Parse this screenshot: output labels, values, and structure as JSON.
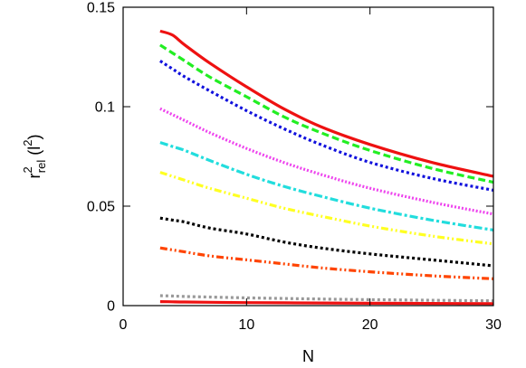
{
  "chart_data": {
    "type": "line",
    "title": "",
    "xlabel": "N",
    "ylabel": {
      "base": "r",
      "sup": "2",
      "sub": "rel",
      "unit_open": " (l",
      "unit_sup": "2",
      "unit_close": ")"
    },
    "xlim": [
      0,
      30
    ],
    "ylim": [
      0,
      0.15
    ],
    "x_ticks": [
      0,
      10,
      20,
      30
    ],
    "x_tick_labels": [
      "0",
      "10",
      "20",
      "30"
    ],
    "y_ticks": [
      0,
      0.05,
      0.1,
      0.15
    ],
    "y_tick_labels": [
      "0",
      "0.05",
      "0.1",
      "0.15"
    ],
    "grid": false,
    "legend": "none",
    "x": [
      3,
      4,
      5,
      7,
      10,
      13,
      16,
      20,
      25,
      30
    ],
    "series": [
      {
        "color": "#ee1111",
        "dash": "solid",
        "values": [
          0.138,
          0.136,
          0.131,
          0.122,
          0.11,
          0.099,
          0.09,
          0.081,
          0.072,
          0.065
        ]
      },
      {
        "color": "#22ee22",
        "dash": "dashed",
        "values": [
          0.131,
          0.127,
          0.123,
          0.115,
          0.105,
          0.095,
          0.087,
          0.078,
          0.069,
          0.062
        ]
      },
      {
        "color": "#1111dd",
        "dash": "dotted",
        "values": [
          0.123,
          0.119,
          0.115,
          0.108,
          0.098,
          0.089,
          0.081,
          0.072,
          0.064,
          0.058
        ]
      },
      {
        "color": "#ee44ee",
        "dash": "densedot",
        "values": [
          0.099,
          0.096,
          0.093,
          0.087,
          0.079,
          0.072,
          0.066,
          0.059,
          0.052,
          0.046
        ]
      },
      {
        "color": "#22dddd",
        "dash": "dashdot",
        "values": [
          0.082,
          0.08,
          0.078,
          0.073,
          0.066,
          0.06,
          0.055,
          0.049,
          0.043,
          0.038
        ]
      },
      {
        "color": "#ffff22",
        "dash": "dashdotdot",
        "values": [
          0.067,
          0.065,
          0.063,
          0.059,
          0.054,
          0.049,
          0.045,
          0.04,
          0.035,
          0.031
        ]
      },
      {
        "color": "#000000",
        "dash": "dotted",
        "values": [
          0.044,
          0.043,
          0.042,
          0.039,
          0.036,
          0.032,
          0.029,
          0.026,
          0.023,
          0.02
        ]
      },
      {
        "color": "#ff4400",
        "dash": "dashdotdot",
        "values": [
          0.029,
          0.028,
          0.027,
          0.025,
          0.023,
          0.021,
          0.019,
          0.017,
          0.015,
          0.0135
        ]
      },
      {
        "color": "#999999",
        "dash": "dotted",
        "values": [
          0.005,
          0.0048,
          0.0046,
          0.0043,
          0.0039,
          0.0036,
          0.0033,
          0.003,
          0.0027,
          0.0024
        ]
      },
      {
        "color": "#ee1111",
        "dash": "solid",
        "values": [
          0.002,
          0.0019,
          0.0018,
          0.0017,
          0.0015,
          0.0014,
          0.0013,
          0.0012,
          0.0011,
          0.001
        ]
      }
    ]
  }
}
